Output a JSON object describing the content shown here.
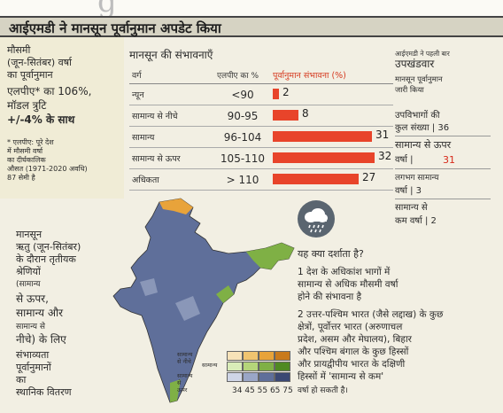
{
  "headline": "आईएमडी ने मानसून पूर्वानुमान अपडेट किया",
  "left_panel": {
    "lines": [
      "मौसमी",
      "(जून-सितंबर) वर्षा",
      "का पूर्वानुमान",
      "एलपीए* का 106%,",
      "मॉडल त्रुटि",
      "+/-4% के साथ"
    ],
    "note": [
      "* एलपीए: पूरे देश",
      "में मौसमी वर्षा",
      "का दीर्घकालिक",
      "औसत (1971-2020 अवधि)",
      "87 सेमी है"
    ]
  },
  "prob_table": {
    "title": "मानसून की संभावनाएँ",
    "headers": [
      "वर्ग",
      "एलपीए का %",
      "पूर्वानुमान संभावना (%)"
    ],
    "rows": [
      {
        "category": "न्यून",
        "lpa": "<90",
        "prob": "2"
      },
      {
        "category": "सामान्य से नीचे",
        "lpa": "90-95",
        "prob": "8"
      },
      {
        "category": "सामान्य",
        "lpa": "96-104",
        "prob": "31"
      },
      {
        "category": "सामान्य से ऊपर",
        "lpa": "105-110",
        "prob": "32"
      },
      {
        "category": "अधिकता",
        "lpa": "> 110",
        "prob": "27"
      }
    ]
  },
  "right_panel": {
    "small_note": "आईएमडी ने पहली बार",
    "title": "उपखंडवार",
    "subtitle": [
      "मानसून पूर्वानुमान",
      "जारी किया"
    ],
    "count_lines": [
      "उपविभागों की",
      "कुल संख्या | 36"
    ],
    "above_lines": [
      "सामान्य से ऊपर",
      "वर्षा |"
    ],
    "above_value": "31",
    "near_lines": [
      "लगभग सामान्य",
      "वर्षा | 3"
    ],
    "below_lines": [
      "सामान्य से",
      "कम वर्षा | 2"
    ]
  },
  "left_lower": [
    "मानसून",
    "ऋतु (जून-सितंबर)",
    "के दौरान तृतीयक",
    "श्रेणियों",
    "(सामान्य",
    "से ऊपर,",
    "सामान्य और",
    "सामान्य से",
    "नीचे) के लिए",
    "संभाव्यता",
    "पूर्वानुमानों",
    "का",
    "स्थानिक वितरण"
  ],
  "legend": {
    "labels": [
      "सामान्य से नीचे",
      "सामान्य",
      "सामान्य से ऊपर"
    ],
    "scale": "34 45 55 65 75",
    "colors": {
      "below": "#e8a33a",
      "normal": "#7fb045",
      "above": "#5f6f9a"
    }
  },
  "explanation": {
    "question": "यह क्या दर्शाता है?",
    "point1": [
      "1 देश के अधिकांश भागों में",
      "सामान्य से अधिक मौसमी वर्षा",
      "होने की संभावना है"
    ],
    "point2": [
      "2 उत्तर-पश्चिम भारत (जैसे लद्दाख) के कुछ",
      "क्षेत्रों, पूर्वोत्तर भारत (अरुणाचल",
      "प्रदेश, असम और मेघालय), बिहार",
      "और पश्चिम बंगाल के कुछ हिस्सों",
      "और प्रायद्वीपीय भारत के दक्षिणी",
      "हिस्सों में 'सामान्य से कम'",
      "वर्षा हो सकती है।"
    ]
  },
  "icons": {
    "rain": "rain-cloud-icon"
  }
}
